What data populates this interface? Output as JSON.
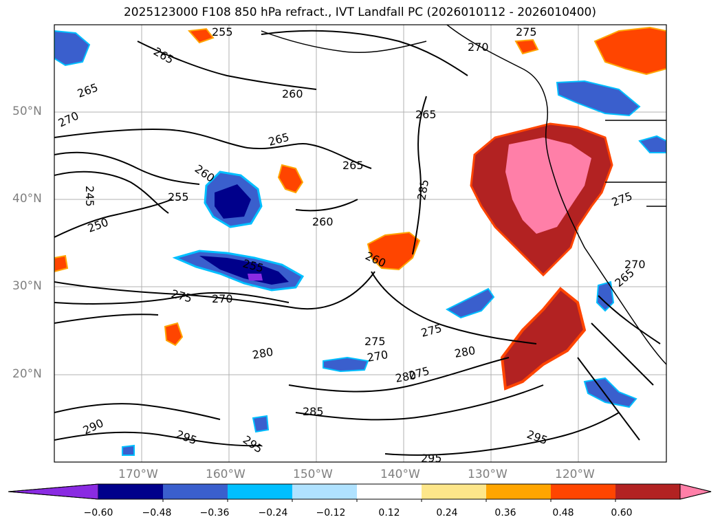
{
  "title": "2025123000 F108 850 hPa refract., IVT Landfall PC (2026010112 - 2026010400)",
  "map": {
    "lat_labels": [
      "50°N",
      "40°N",
      "30°N",
      "20°N"
    ],
    "lon_labels": [
      "170°W",
      "160°W",
      "150°W",
      "140°W",
      "130°W",
      "120°W"
    ],
    "contour_labels": [
      "265",
      "255",
      "265",
      "260",
      "270",
      "275",
      "270",
      "265",
      "265",
      "260",
      "265",
      "245",
      "255",
      "250",
      "260",
      "285",
      "255",
      "260",
      "270",
      "275",
      "275",
      "270",
      "280",
      "275",
      "280",
      "280",
      "275",
      "290",
      "285",
      "295",
      "295",
      "295",
      "295",
      "275",
      "270",
      "265"
    ]
  },
  "colorbar": {
    "ticks": [
      "−0.60",
      "−0.48",
      "−0.36",
      "−0.24",
      "−0.12",
      "0.12",
      "0.24",
      "0.36",
      "0.48",
      "0.60"
    ],
    "colors": [
      "#8a2be2",
      "#00008b",
      "#3a5fcd",
      "#00bfff",
      "#b0e2ff",
      "#ffffff",
      "#fde68a",
      "#ffa500",
      "#ff4500",
      "#b22222",
      "#ff7fa8"
    ]
  }
}
